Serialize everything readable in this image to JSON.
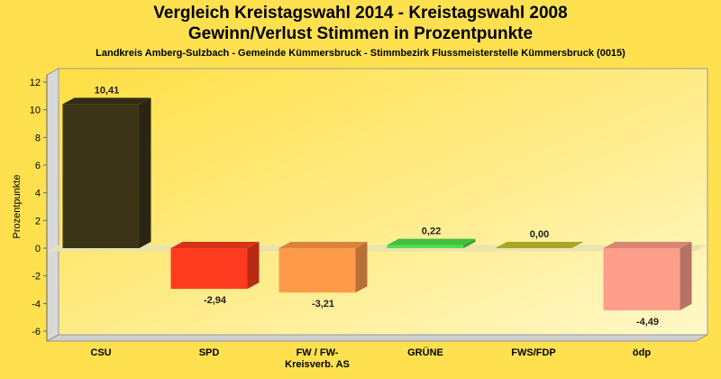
{
  "chart_data": {
    "type": "bar",
    "title": "Vergleich Kreistagswahl 2014 - Kreistagswahl 2008",
    "subtitle": "Gewinn/Verlust Stimmen in Prozentpunkte",
    "caption": "Landkreis Amberg-Sulzbach - Gemeinde Kümmersbruck - Stimmbezirk Flussmeisterstelle Kümmersbruck (0015)",
    "ylabel": "Prozentpunkte",
    "ylim": [
      -6,
      12
    ],
    "yticks": [
      12,
      10,
      8,
      6,
      4,
      2,
      0,
      -2,
      -4,
      -6
    ],
    "categories": [
      {
        "lines": [
          "CSU"
        ]
      },
      {
        "lines": [
          "SPD"
        ]
      },
      {
        "lines": [
          "FW / FW-",
          "Kreisverb. AS"
        ]
      },
      {
        "lines": [
          "GRÜNE"
        ]
      },
      {
        "lines": [
          "FWS/FDP"
        ]
      },
      {
        "lines": [
          "ödp"
        ]
      }
    ],
    "values": [
      10.41,
      -2.94,
      -3.21,
      0.22,
      0.0,
      -4.49
    ],
    "value_labels": [
      "10,41",
      "-2,94",
      "-3,21",
      "0,22",
      "0,00",
      "-4,49"
    ],
    "colors": [
      "#3b3416",
      "#ff3b1f",
      "#ff9a4a",
      "#4fe04a",
      "#c8c22a",
      "#ff9e8a"
    ],
    "grid": false,
    "legend": "none"
  }
}
